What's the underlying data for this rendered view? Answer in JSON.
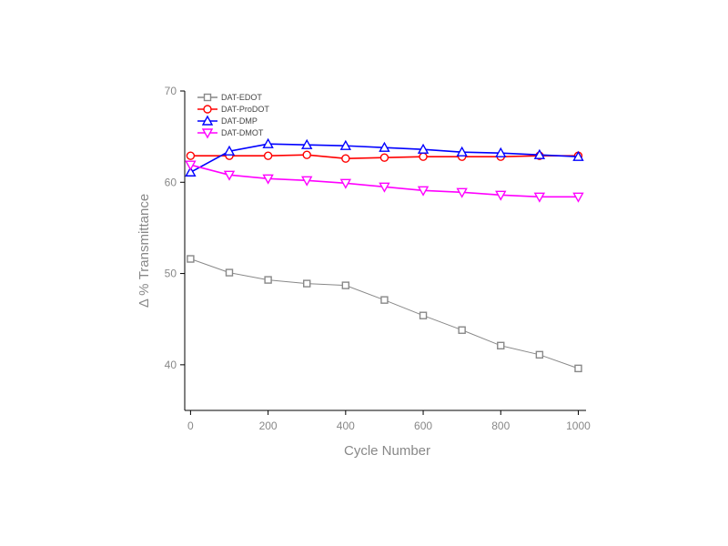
{
  "chart_data": {
    "type": "line",
    "title": "",
    "xlabel": "Cycle Number",
    "ylabel": "Δ % Transmittance",
    "xlim": [
      -15,
      1020
    ],
    "ylim": [
      35,
      70
    ],
    "xticks": [
      0,
      200,
      400,
      600,
      800,
      1000
    ],
    "yticks": [
      40,
      50,
      60,
      70
    ],
    "grid": false,
    "legend_position": "top-left",
    "x": [
      0,
      100,
      200,
      300,
      400,
      500,
      600,
      700,
      800,
      900,
      1000
    ],
    "series": [
      {
        "name": "DAT-EDOT",
        "color": "#888888",
        "marker": "square",
        "values": [
          51.6,
          50.1,
          49.3,
          48.9,
          48.7,
          47.1,
          45.4,
          43.8,
          42.1,
          41.1,
          39.6
        ]
      },
      {
        "name": "DAT-ProDOT",
        "color": "#ff0000",
        "marker": "circle",
        "values": [
          62.9,
          62.9,
          62.9,
          63.0,
          62.6,
          62.7,
          62.8,
          62.8,
          62.8,
          62.9,
          62.9
        ]
      },
      {
        "name": "DAT-DMP",
        "color": "#0000ff",
        "marker": "triangle-up",
        "values": [
          61.1,
          63.4,
          64.2,
          64.1,
          64.0,
          63.8,
          63.6,
          63.3,
          63.2,
          63.0,
          62.8
        ]
      },
      {
        "name": "DAT-DMOT",
        "color": "#ff00ff",
        "marker": "triangle-down",
        "values": [
          61.9,
          60.8,
          60.4,
          60.2,
          59.9,
          59.5,
          59.1,
          58.9,
          58.6,
          58.4,
          58.4
        ]
      }
    ]
  }
}
